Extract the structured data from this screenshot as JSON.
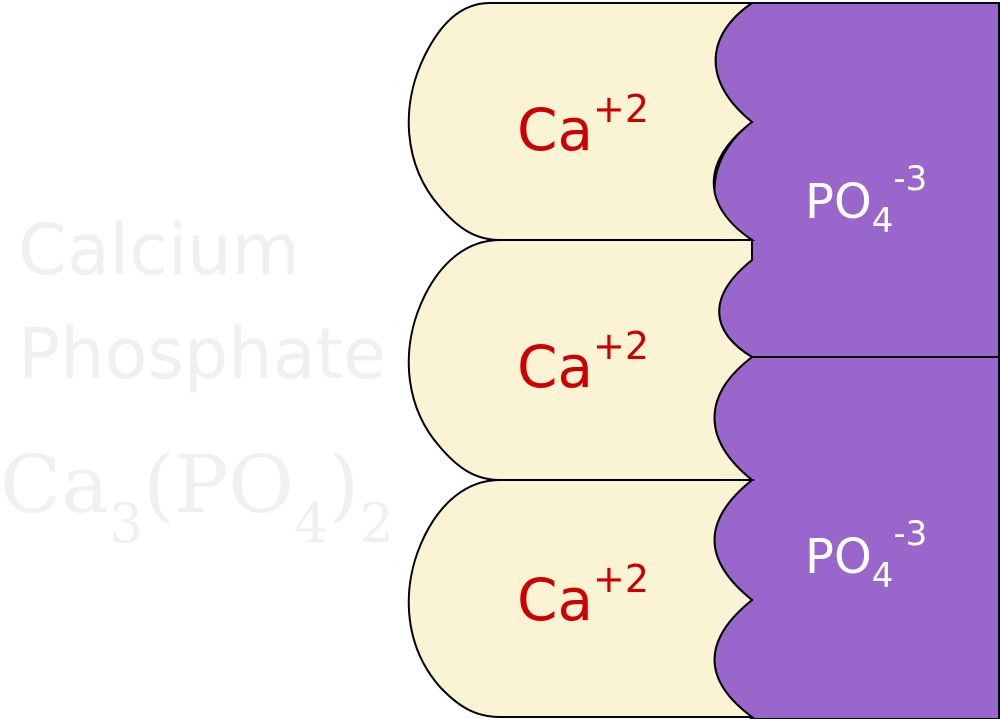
{
  "compound": {
    "name_line1": "Calcium",
    "name_line2": "Phosphate",
    "formula": {
      "base1": "Ca",
      "sub1": "3",
      "base2": "(PO",
      "sub2": "4",
      "base3": ")",
      "sub3": "2"
    }
  },
  "cations": [
    {
      "symbol": "Ca",
      "charge": "+2"
    },
    {
      "symbol": "Ca",
      "charge": "+2"
    },
    {
      "symbol": "Ca",
      "charge": "+2"
    }
  ],
  "anions": [
    {
      "symbol": "PO",
      "subscript": "4",
      "charge": "-3"
    },
    {
      "symbol": "PO",
      "subscript": "4",
      "charge": "-3"
    }
  ],
  "colors": {
    "calcium_fill": "#fbf4d4",
    "phosphate_fill": "#9966cc",
    "calcium_text": "#cc0000",
    "phosphate_text": "#ffffff",
    "watermark_text": "#f0f0f0",
    "outline": "#000000"
  }
}
